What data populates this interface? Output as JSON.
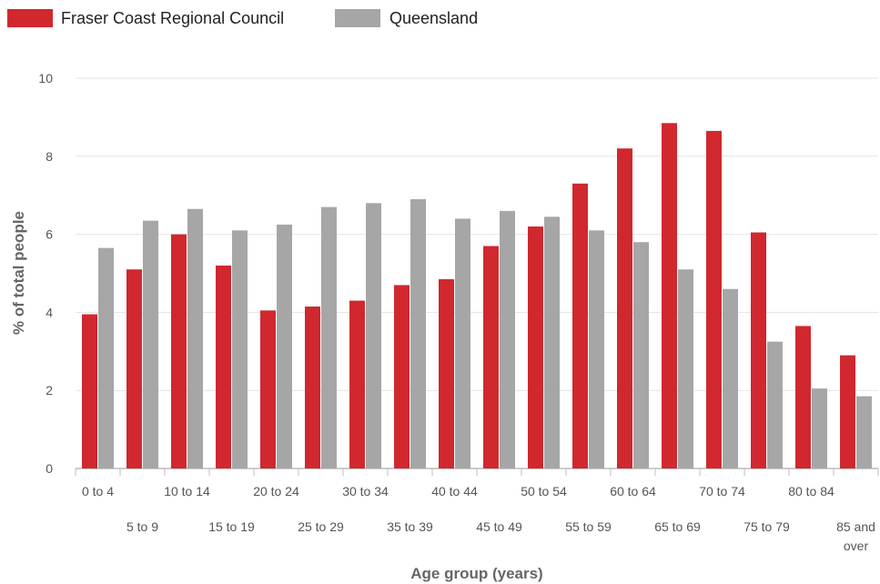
{
  "chart_data": {
    "type": "bar",
    "title": "",
    "xlabel": "Age group (years)",
    "ylabel": "% of total people",
    "ylim": [
      0,
      10
    ],
    "yticks": [
      0,
      2,
      4,
      6,
      8,
      10
    ],
    "grid": true,
    "legend_position": "top-left",
    "categories": [
      "0 to 4",
      "5 to 9",
      "10 to 14",
      "15 to 19",
      "20 to 24",
      "25 to 29",
      "30 to 34",
      "35 to 39",
      "40 to 44",
      "45 to 49",
      "50 to 54",
      "55 to 59",
      "60 to 64",
      "65 to 69",
      "70 to 74",
      "75 to 79",
      "80 to 84",
      "85 and over"
    ],
    "category_lines": [
      [
        "0 to 4"
      ],
      [
        "5 to 9"
      ],
      [
        "10 to 14"
      ],
      [
        "15 to 19"
      ],
      [
        "20 to 24"
      ],
      [
        "25 to 29"
      ],
      [
        "30 to 34"
      ],
      [
        "35 to 39"
      ],
      [
        "40 to 44"
      ],
      [
        "45 to 49"
      ],
      [
        "50 to 54"
      ],
      [
        "55 to 59"
      ],
      [
        "60 to 64"
      ],
      [
        "65 to 69"
      ],
      [
        "70 to 74"
      ],
      [
        "75 to 79"
      ],
      [
        "80 to 84"
      ],
      [
        "85 and",
        "over"
      ]
    ],
    "series": [
      {
        "name": "Fraser Coast Regional Council",
        "color": "#d0282e",
        "values": [
          3.95,
          5.1,
          6.0,
          5.2,
          4.05,
          4.15,
          4.3,
          4.7,
          4.85,
          5.7,
          6.2,
          7.3,
          8.2,
          8.85,
          8.65,
          6.05,
          3.65,
          2.9
        ]
      },
      {
        "name": "Queensland",
        "color": "#a6a6a6",
        "values": [
          5.65,
          6.35,
          6.65,
          6.1,
          6.25,
          6.7,
          6.8,
          6.9,
          6.4,
          6.6,
          6.45,
          6.1,
          5.8,
          5.1,
          4.6,
          3.25,
          2.05,
          1.85
        ]
      }
    ]
  }
}
